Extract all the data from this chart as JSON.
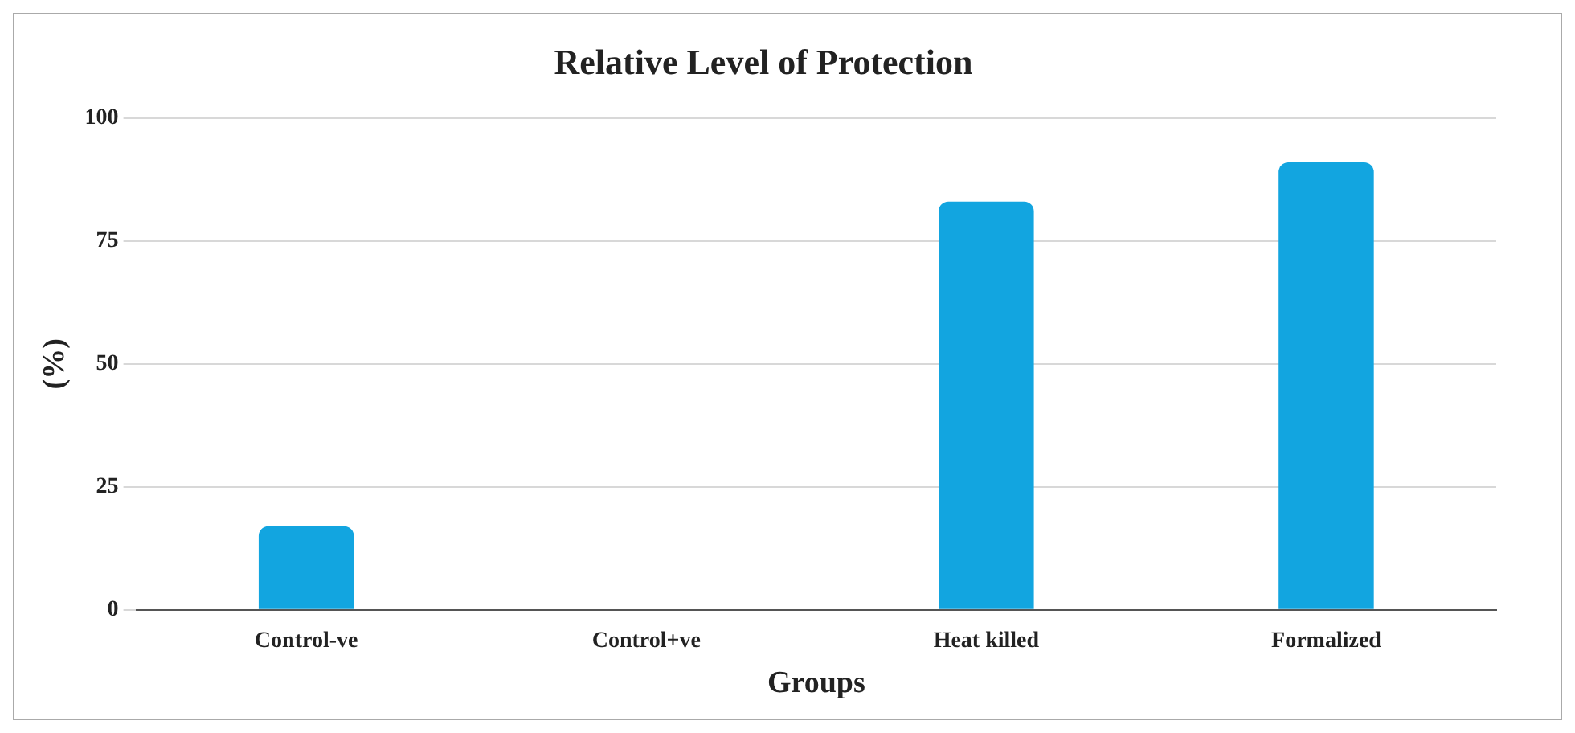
{
  "chart_data": {
    "type": "bar",
    "title": "Relative Level of Protection",
    "xlabel": "Groups",
    "ylabel": "(%)",
    "categories": [
      "Control-ve",
      "Control+ve",
      "Heat killed",
      "Formalized"
    ],
    "values": [
      17,
      0,
      83,
      91
    ],
    "color": "#12a5e0",
    "ylim": [
      0,
      100
    ],
    "yticks": [
      0,
      25,
      50,
      75,
      100
    ],
    "grid": "y"
  }
}
